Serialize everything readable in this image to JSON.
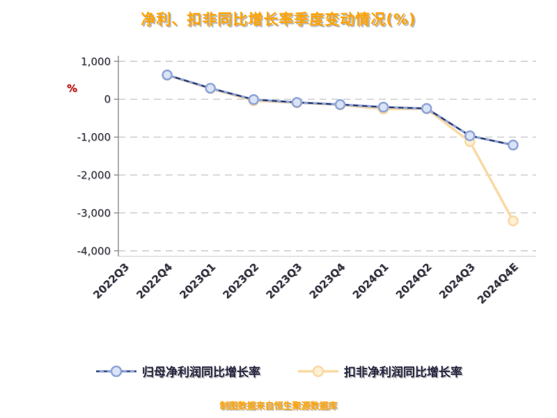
{
  "chart_data": {
    "type": "line",
    "title": "净利、扣非同比增长率季度变动情况(%)",
    "ylabel": "%",
    "xlabel": "",
    "categories": [
      "2022Q3",
      "2022Q4",
      "2023Q1",
      "2023Q2",
      "2023Q3",
      "2023Q4",
      "2024Q1",
      "2024Q2",
      "2024Q3",
      "2024Q4E"
    ],
    "series": [
      {
        "name": "归母净利润同比增长率",
        "color": "#8fa6d9",
        "marker_fill": "#dbe4f6",
        "overlay_color": "#262b52",
        "values": [
          null,
          640,
          290,
          -10,
          -85,
          -140,
          -210,
          -245,
          -965,
          -1210
        ]
      },
      {
        "name": "扣非净利润同比增长率",
        "color": "#f9d9a4",
        "marker_fill": "#fdf0d5",
        "overlay_color": null,
        "values": [
          null,
          630,
          280,
          -40,
          -95,
          -150,
          -260,
          -255,
          -1120,
          -3210
        ]
      }
    ],
    "ylim": [
      -4000,
      1000
    ],
    "yticks": [
      1000,
      0,
      -1000,
      -2000,
      -3000,
      -4000
    ],
    "grid": true,
    "legend_position": "bottom"
  },
  "source_note": "制图数据来自恒生聚源数据库",
  "colors": {
    "title": "#ffa200",
    "source_note": "#ffa200",
    "axis_text": "#30303e",
    "ylabel": "#cc0000",
    "gridline": "#c9c9c9",
    "series_blue": "#8fa6d9",
    "series_orange": "#f9d9a4"
  }
}
